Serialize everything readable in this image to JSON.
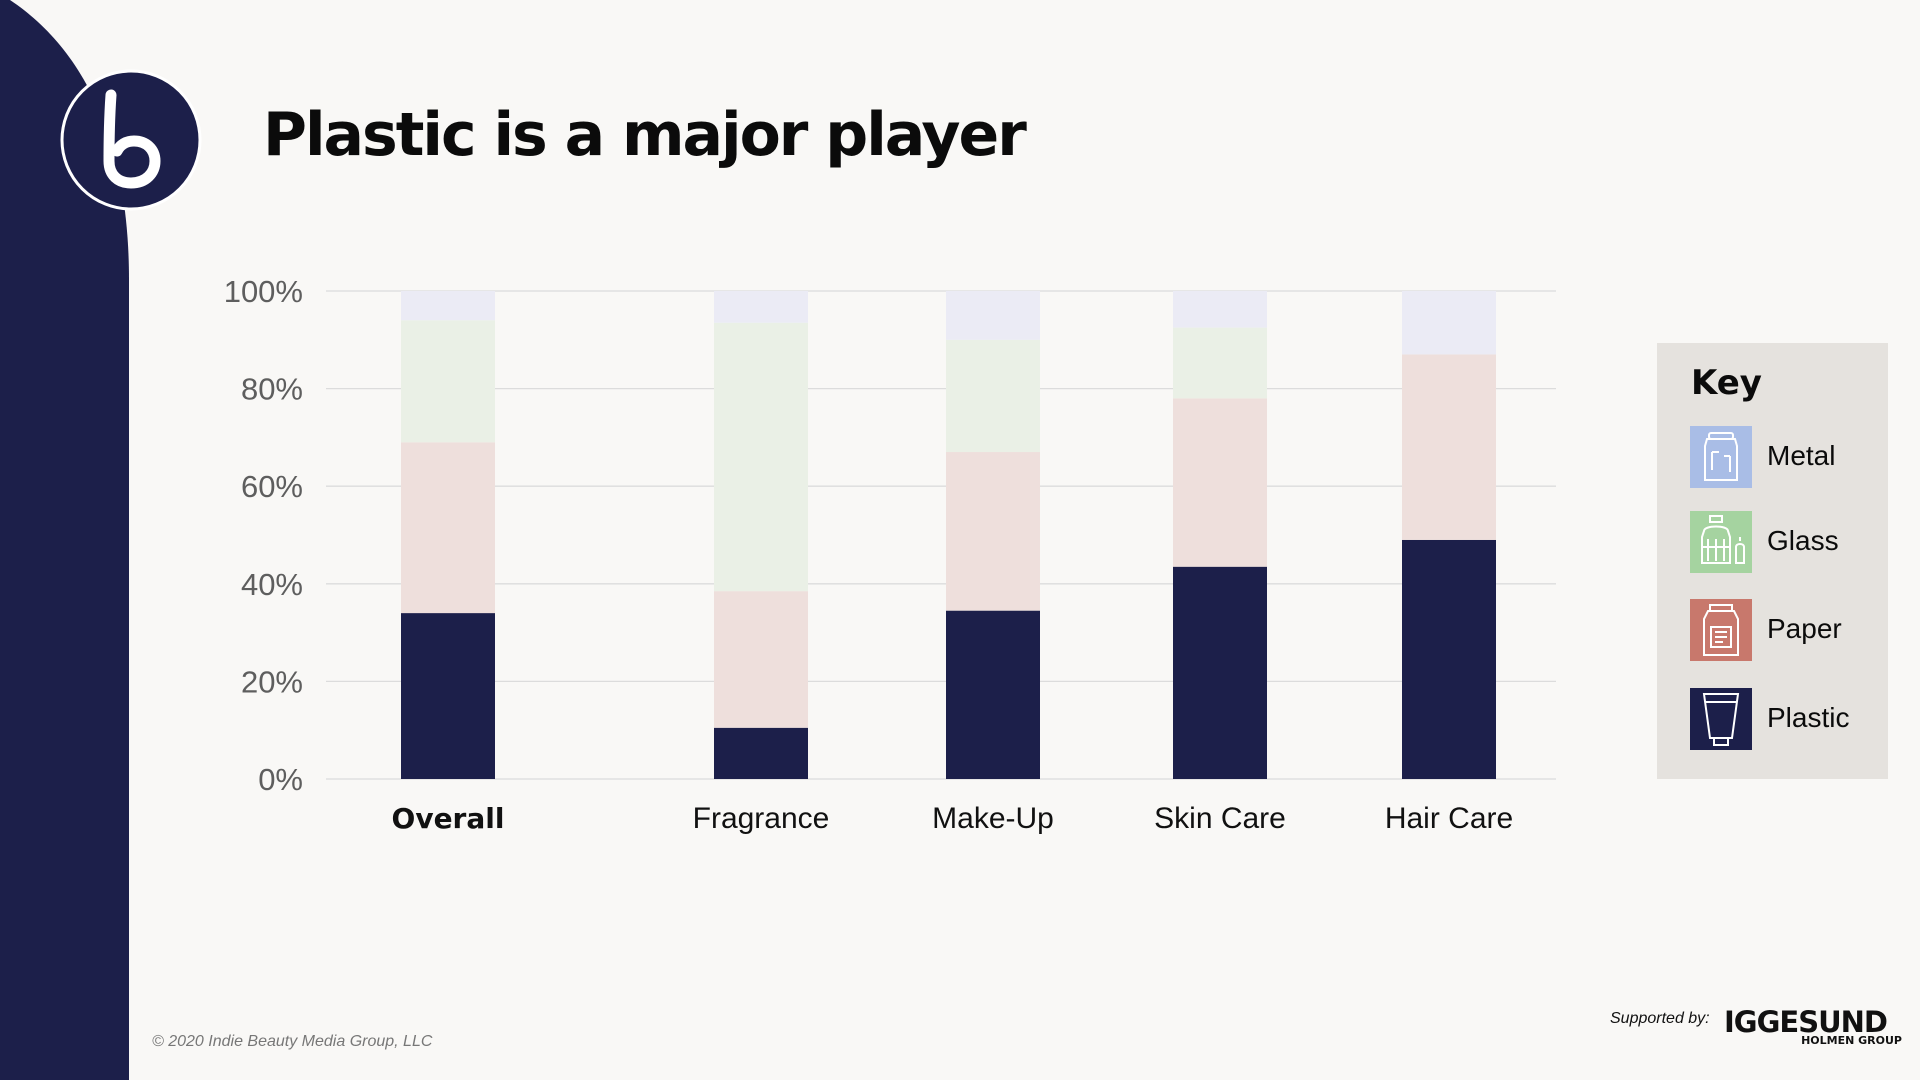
{
  "title": "Plastic is a major player",
  "colors": {
    "band": "#1c1f4a",
    "background": "#f9f8f6",
    "plastic": "#1c1f4a",
    "paper": "#eedfdc",
    "glass": "#eaf0e6",
    "metal": "#ebebf5",
    "icon_metal": "#a9bde6",
    "icon_glass": "#a5d3a0",
    "icon_paper": "#c8786c",
    "icon_plastic": "#1c1f4a"
  },
  "chart_data": {
    "type": "bar",
    "stacked": true,
    "categories": [
      "Overall",
      "Fragrance",
      "Make-Up",
      "Skin Care",
      "Hair Care"
    ],
    "emphasized_category": "Overall",
    "series": [
      {
        "name": "Plastic",
        "values": [
          34,
          10.5,
          34.5,
          43.5,
          49
        ]
      },
      {
        "name": "Paper",
        "values": [
          35,
          28,
          32.5,
          34.5,
          38
        ]
      },
      {
        "name": "Glass",
        "values": [
          25,
          55,
          23,
          14.5,
          0
        ]
      },
      {
        "name": "Metal",
        "values": [
          6,
          6.5,
          10,
          7.5,
          13
        ]
      }
    ],
    "yticks": [
      "0%",
      "20%",
      "40%",
      "60%",
      "80%",
      "100%"
    ],
    "ylim": [
      0,
      100
    ],
    "grid": true,
    "legend": "right"
  },
  "key": {
    "title": "Key",
    "items": [
      {
        "label": "Metal",
        "icon": "metal-can-icon"
      },
      {
        "label": "Glass",
        "icon": "glass-bottle-icon"
      },
      {
        "label": "Paper",
        "icon": "paper-carton-icon"
      },
      {
        "label": "Plastic",
        "icon": "plastic-tube-icon"
      }
    ]
  },
  "footer": {
    "copyright": "© 2020 Indie Beauty Media Group, LLC",
    "supported_by": "Supported by:",
    "sponsor_name": "IGGESUND",
    "sponsor_sub": "HOLMEN GROUP"
  },
  "logo": {
    "letter": "b"
  }
}
